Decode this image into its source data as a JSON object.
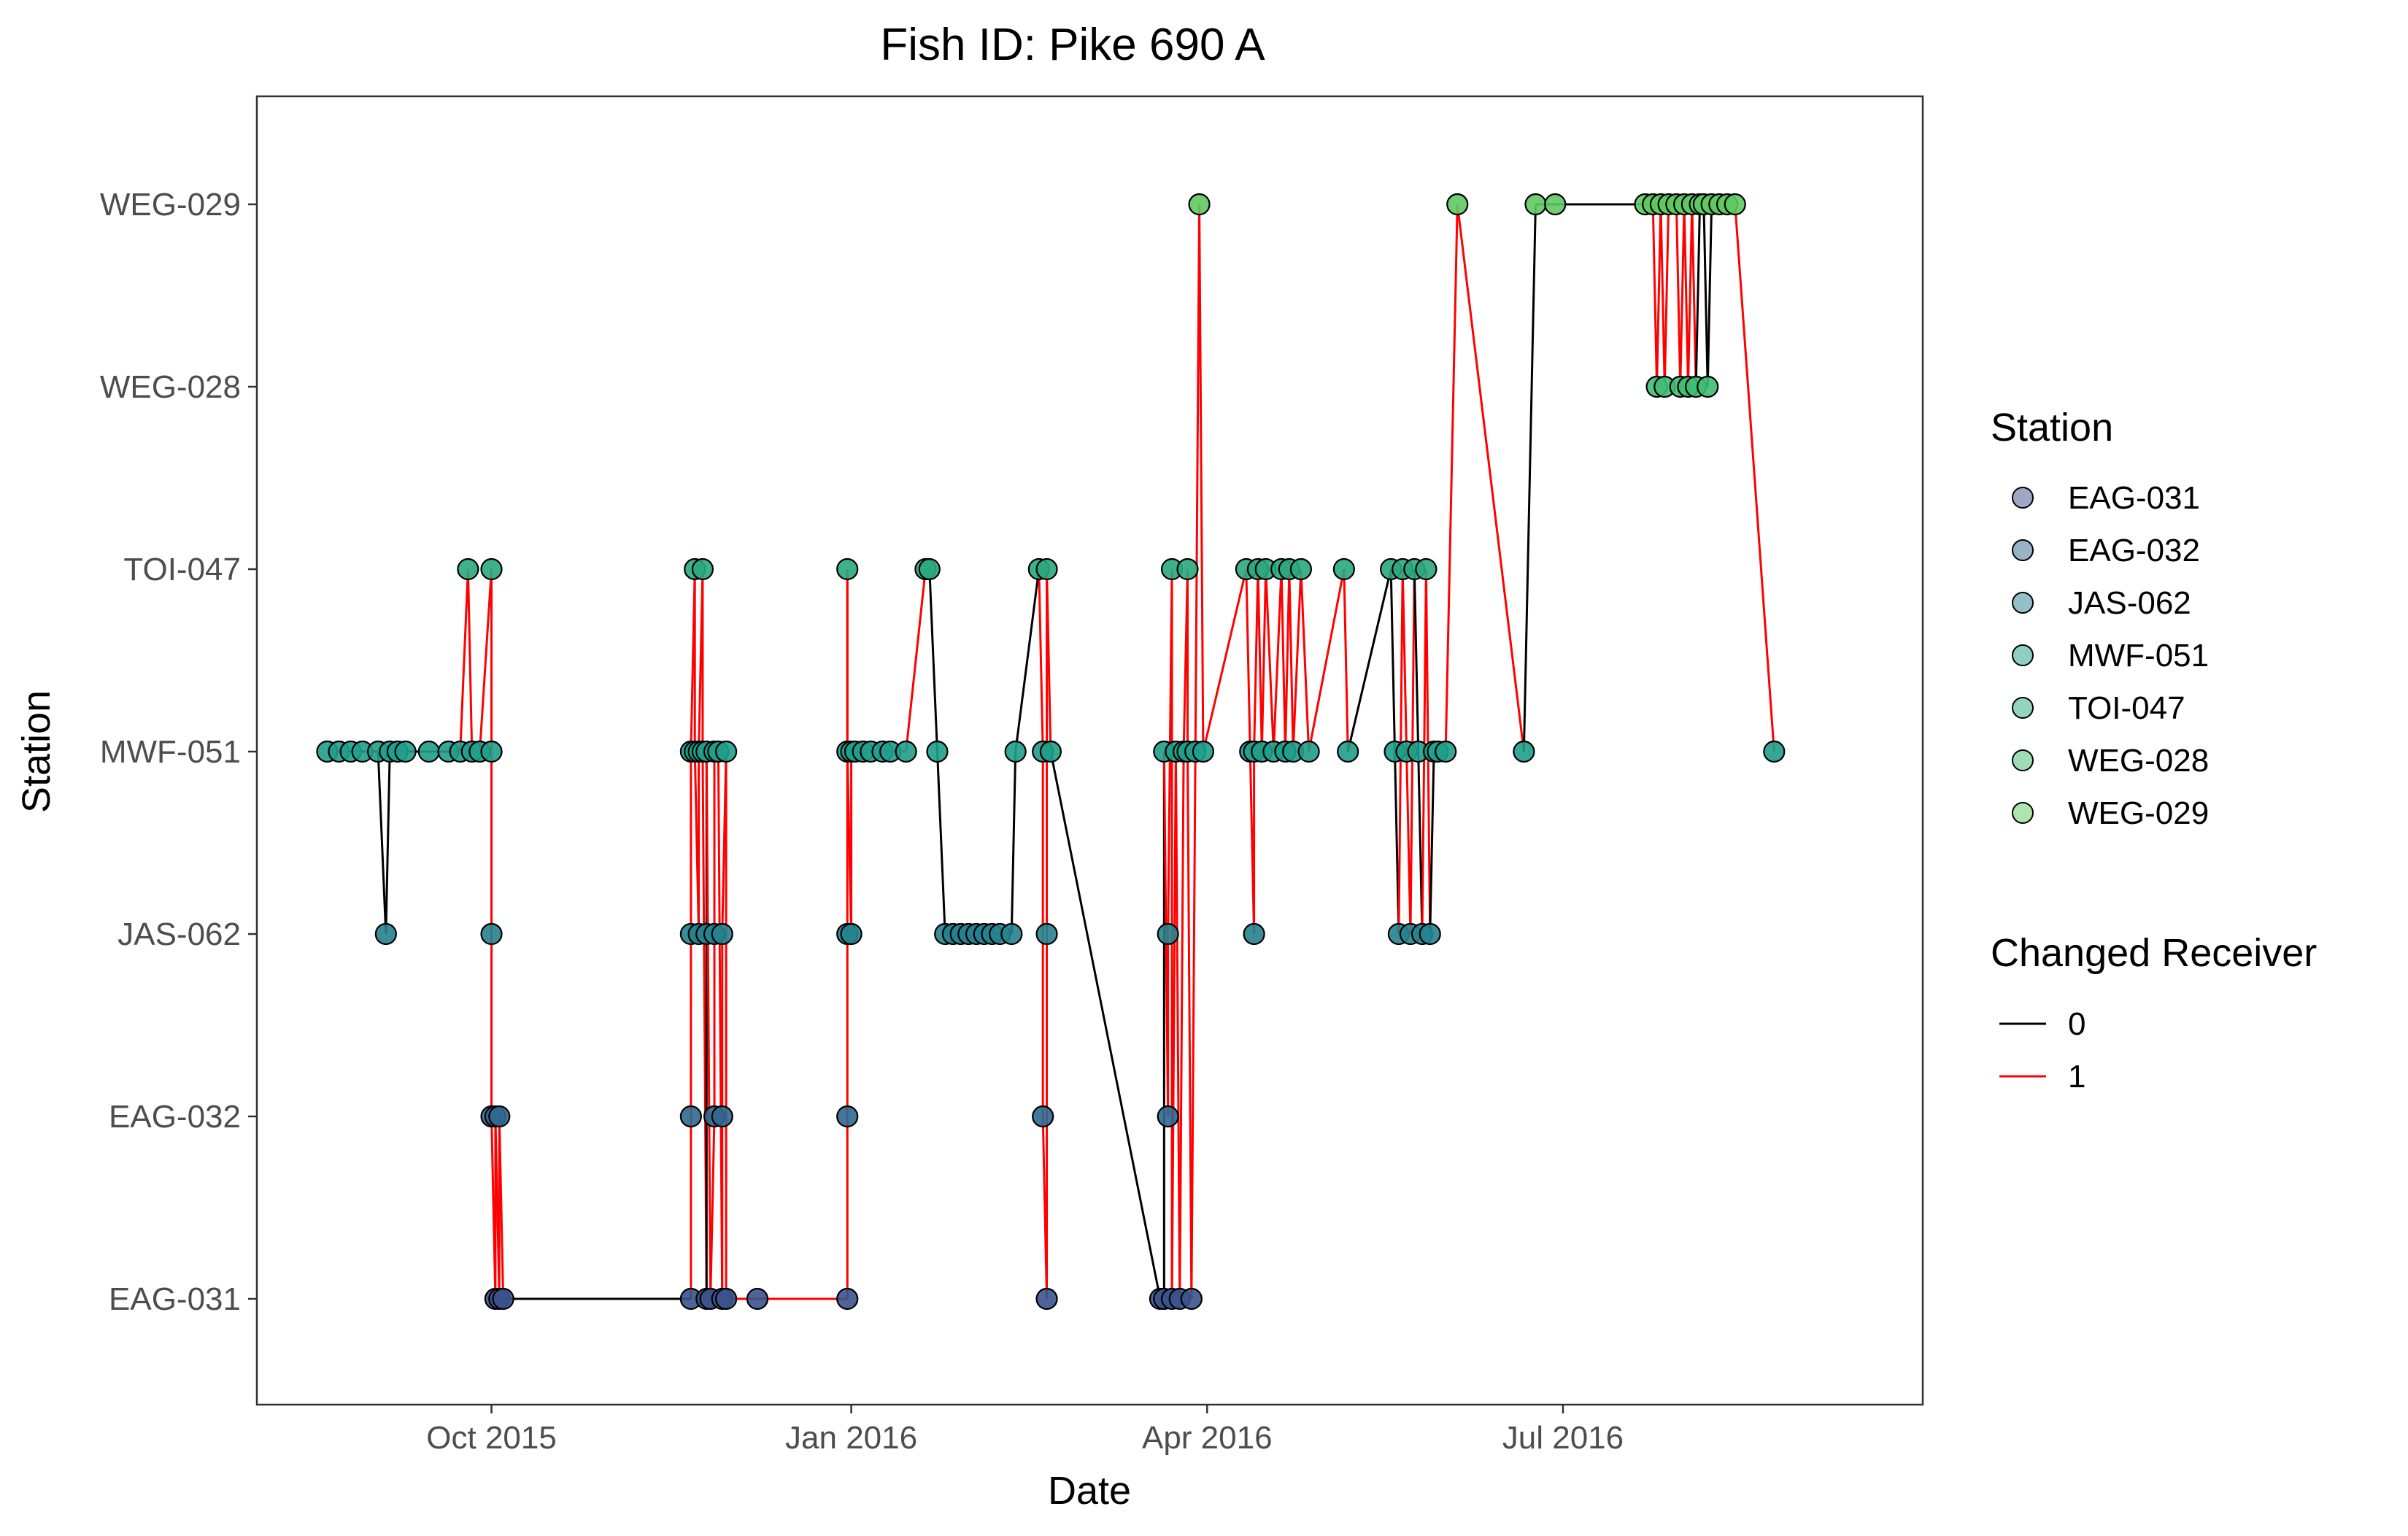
{
  "chart_data": {
    "type": "line",
    "title": "Fish ID: Pike 690 A",
    "xlabel": "Date",
    "ylabel": "Station",
    "x_type": "date",
    "xlim": [
      "2015-08-02",
      "2016-10-01"
    ],
    "x_ticks": [
      {
        "date": "2015-10-01",
        "label": "Oct 2015"
      },
      {
        "date": "2016-01-01",
        "label": "Jan 2016"
      },
      {
        "date": "2016-04-01",
        "label": "Apr 2016"
      },
      {
        "date": "2016-07-01",
        "label": "Jul 2016"
      }
    ],
    "y_categories": [
      "EAG-031",
      "EAG-032",
      "JAS-062",
      "MWF-051",
      "TOI-047",
      "WEG-028",
      "WEG-029"
    ],
    "grid": false,
    "legend": {
      "position": "right",
      "station_title": "Station",
      "stations": [
        {
          "name": "EAG-031",
          "color": "#3b528b"
        },
        {
          "name": "EAG-032",
          "color": "#31688e"
        },
        {
          "name": "JAS-062",
          "color": "#26828e"
        },
        {
          "name": "MWF-051",
          "color": "#1f9e89"
        },
        {
          "name": "TOI-047",
          "color": "#2aa87d"
        },
        {
          "name": "WEG-028",
          "color": "#3fbc73"
        },
        {
          "name": "WEG-029",
          "color": "#5ec962"
        }
      ],
      "changed_title": "Changed Receiver",
      "changed": [
        {
          "name": "0",
          "color": "#000000"
        },
        {
          "name": "1",
          "color": "#ff0000"
        }
      ]
    },
    "points": [
      {
        "date": "2015-08-20",
        "station": "MWF-051",
        "changed": 0
      },
      {
        "date": "2015-08-23",
        "station": "MWF-051",
        "changed": 0
      },
      {
        "date": "2015-08-26",
        "station": "MWF-051",
        "changed": 0
      },
      {
        "date": "2015-08-29",
        "station": "MWF-051",
        "changed": 0
      },
      {
        "date": "2015-09-02",
        "station": "MWF-051",
        "changed": 0
      },
      {
        "date": "2015-09-04",
        "station": "JAS-062",
        "changed": 0
      },
      {
        "date": "2015-09-05",
        "station": "MWF-051",
        "changed": 0
      },
      {
        "date": "2015-09-07",
        "station": "MWF-051",
        "changed": 0
      },
      {
        "date": "2015-09-09",
        "station": "MWF-051",
        "changed": 0
      },
      {
        "date": "2015-09-15",
        "station": "MWF-051",
        "changed": 0
      },
      {
        "date": "2015-09-20",
        "station": "MWF-051",
        "changed": 0
      },
      {
        "date": "2015-09-23",
        "station": "MWF-051",
        "changed": 0
      },
      {
        "date": "2015-09-25",
        "station": "TOI-047",
        "changed": 1
      },
      {
        "date": "2015-09-26",
        "station": "MWF-051",
        "changed": 1
      },
      {
        "date": "2015-09-28",
        "station": "MWF-051",
        "changed": 0
      },
      {
        "date": "2015-10-01",
        "station": "TOI-047",
        "changed": 1
      },
      {
        "date": "2015-10-01",
        "station": "MWF-051",
        "changed": 1
      },
      {
        "date": "2015-10-01",
        "station": "JAS-062",
        "changed": 1
      },
      {
        "date": "2015-10-01",
        "station": "EAG-032",
        "changed": 1
      },
      {
        "date": "2015-10-02",
        "station": "EAG-031",
        "changed": 1
      },
      {
        "date": "2015-10-02",
        "station": "EAG-032",
        "changed": 1
      },
      {
        "date": "2015-10-03",
        "station": "EAG-031",
        "changed": 1
      },
      {
        "date": "2015-10-03",
        "station": "EAG-032",
        "changed": 1
      },
      {
        "date": "2015-10-04",
        "station": "EAG-031",
        "changed": 1
      },
      {
        "date": "2015-11-21",
        "station": "EAG-031",
        "changed": 0
      },
      {
        "date": "2015-11-21",
        "station": "EAG-032",
        "changed": 1
      },
      {
        "date": "2015-11-21",
        "station": "JAS-062",
        "changed": 1
      },
      {
        "date": "2015-11-21",
        "station": "MWF-051",
        "changed": 1
      },
      {
        "date": "2015-11-22",
        "station": "TOI-047",
        "changed": 1
      },
      {
        "date": "2015-11-22",
        "station": "MWF-051",
        "changed": 1
      },
      {
        "date": "2015-11-23",
        "station": "JAS-062",
        "changed": 1
      },
      {
        "date": "2015-11-23",
        "station": "MWF-051",
        "changed": 1
      },
      {
        "date": "2015-11-24",
        "station": "TOI-047",
        "changed": 1
      },
      {
        "date": "2015-11-24",
        "station": "MWF-051",
        "changed": 1
      },
      {
        "date": "2015-11-25",
        "station": "EAG-031",
        "changed": 1
      },
      {
        "date": "2015-11-25",
        "station": "JAS-062",
        "changed": 0
      },
      {
        "date": "2015-11-25",
        "station": "MWF-051",
        "changed": 0
      },
      {
        "date": "2015-11-26",
        "station": "EAG-031",
        "changed": 1
      },
      {
        "date": "2015-11-27",
        "station": "EAG-032",
        "changed": 1
      },
      {
        "date": "2015-11-27",
        "station": "JAS-062",
        "changed": 1
      },
      {
        "date": "2015-11-27",
        "station": "MWF-051",
        "changed": 1
      },
      {
        "date": "2015-11-28",
        "station": "MWF-051",
        "changed": 1
      },
      {
        "date": "2015-11-29",
        "station": "EAG-031",
        "changed": 1
      },
      {
        "date": "2015-11-29",
        "station": "EAG-032",
        "changed": 1
      },
      {
        "date": "2015-11-29",
        "station": "JAS-062",
        "changed": 1
      },
      {
        "date": "2015-11-30",
        "station": "MWF-051",
        "changed": 1
      },
      {
        "date": "2015-11-30",
        "station": "EAG-031",
        "changed": 1
      },
      {
        "date": "2015-12-08",
        "station": "EAG-031",
        "changed": 1
      },
      {
        "date": "2015-12-31",
        "station": "EAG-031",
        "changed": 1
      },
      {
        "date": "2015-12-31",
        "station": "EAG-032",
        "changed": 1
      },
      {
        "date": "2015-12-31",
        "station": "JAS-062",
        "changed": 1
      },
      {
        "date": "2015-12-31",
        "station": "TOI-047",
        "changed": 1
      },
      {
        "date": "2015-12-31",
        "station": "MWF-051",
        "changed": 1
      },
      {
        "date": "2016-01-01",
        "station": "JAS-062",
        "changed": 1
      },
      {
        "date": "2016-01-01",
        "station": "MWF-051",
        "changed": 1
      },
      {
        "date": "2016-01-02",
        "station": "MWF-051",
        "changed": 1
      },
      {
        "date": "2016-01-04",
        "station": "MWF-051",
        "changed": 1
      },
      {
        "date": "2016-01-06",
        "station": "MWF-051",
        "changed": 1
      },
      {
        "date": "2016-01-09",
        "station": "MWF-051",
        "changed": 1
      },
      {
        "date": "2016-01-11",
        "station": "MWF-051",
        "changed": 1
      },
      {
        "date": "2016-01-15",
        "station": "MWF-051",
        "changed": 1
      },
      {
        "date": "2016-01-20",
        "station": "TOI-047",
        "changed": 1
      },
      {
        "date": "2016-01-21",
        "station": "TOI-047",
        "changed": 1
      },
      {
        "date": "2016-01-23",
        "station": "MWF-051",
        "changed": 0
      },
      {
        "date": "2016-01-25",
        "station": "JAS-062",
        "changed": 0
      },
      {
        "date": "2016-01-27",
        "station": "JAS-062",
        "changed": 0
      },
      {
        "date": "2016-01-29",
        "station": "JAS-062",
        "changed": 0
      },
      {
        "date": "2016-01-31",
        "station": "JAS-062",
        "changed": 0
      },
      {
        "date": "2016-02-02",
        "station": "JAS-062",
        "changed": 0
      },
      {
        "date": "2016-02-04",
        "station": "JAS-062",
        "changed": 0
      },
      {
        "date": "2016-02-06",
        "station": "JAS-062",
        "changed": 0
      },
      {
        "date": "2016-02-08",
        "station": "JAS-062",
        "changed": 0
      },
      {
        "date": "2016-02-11",
        "station": "JAS-062",
        "changed": 1
      },
      {
        "date": "2016-02-12",
        "station": "MWF-051",
        "changed": 0
      },
      {
        "date": "2016-02-18",
        "station": "TOI-047",
        "changed": 0
      },
      {
        "date": "2016-02-19",
        "station": "MWF-051",
        "changed": 1
      },
      {
        "date": "2016-02-19",
        "station": "EAG-032",
        "changed": 1
      },
      {
        "date": "2016-02-20",
        "station": "EAG-031",
        "changed": 1
      },
      {
        "date": "2016-02-20",
        "station": "JAS-062",
        "changed": 1
      },
      {
        "date": "2016-02-20",
        "station": "TOI-047",
        "changed": 1
      },
      {
        "date": "2016-02-21",
        "station": "MWF-051",
        "changed": 1
      },
      {
        "date": "2016-03-20",
        "station": "EAG-031",
        "changed": 0
      },
      {
        "date": "2016-03-21",
        "station": "EAG-031",
        "changed": 0
      },
      {
        "date": "2016-03-21",
        "station": "MWF-051",
        "changed": 0
      },
      {
        "date": "2016-03-22",
        "station": "EAG-032",
        "changed": 1
      },
      {
        "date": "2016-03-22",
        "station": "JAS-062",
        "changed": 1
      },
      {
        "date": "2016-03-23",
        "station": "TOI-047",
        "changed": 1
      },
      {
        "date": "2016-03-23",
        "station": "EAG-031",
        "changed": 1
      },
      {
        "date": "2016-03-24",
        "station": "MWF-051",
        "changed": 1
      },
      {
        "date": "2016-03-25",
        "station": "EAG-031",
        "changed": 1
      },
      {
        "date": "2016-03-26",
        "station": "MWF-051",
        "changed": 1
      },
      {
        "date": "2016-03-27",
        "station": "TOI-047",
        "changed": 1
      },
      {
        "date": "2016-03-27",
        "station": "MWF-051",
        "changed": 1
      },
      {
        "date": "2016-03-28",
        "station": "EAG-031",
        "changed": 1
      },
      {
        "date": "2016-03-29",
        "station": "MWF-051",
        "changed": 1
      },
      {
        "date": "2016-03-30",
        "station": "WEG-029",
        "changed": 1
      },
      {
        "date": "2016-03-31",
        "station": "MWF-051",
        "changed": 1
      },
      {
        "date": "2016-04-11",
        "station": "TOI-047",
        "changed": 1
      },
      {
        "date": "2016-04-12",
        "station": "MWF-051",
        "changed": 1
      },
      {
        "date": "2016-04-13",
        "station": "JAS-062",
        "changed": 1
      },
      {
        "date": "2016-04-13",
        "station": "MWF-051",
        "changed": 1
      },
      {
        "date": "2016-04-14",
        "station": "TOI-047",
        "changed": 1
      },
      {
        "date": "2016-04-15",
        "station": "MWF-051",
        "changed": 1
      },
      {
        "date": "2016-04-16",
        "station": "TOI-047",
        "changed": 1
      },
      {
        "date": "2016-04-18",
        "station": "MWF-051",
        "changed": 1
      },
      {
        "date": "2016-04-20",
        "station": "TOI-047",
        "changed": 1
      },
      {
        "date": "2016-04-21",
        "station": "MWF-051",
        "changed": 1
      },
      {
        "date": "2016-04-22",
        "station": "TOI-047",
        "changed": 1
      },
      {
        "date": "2016-04-23",
        "station": "MWF-051",
        "changed": 1
      },
      {
        "date": "2016-04-25",
        "station": "TOI-047",
        "changed": 1
      },
      {
        "date": "2016-04-27",
        "station": "MWF-051",
        "changed": 1
      },
      {
        "date": "2016-05-06",
        "station": "TOI-047",
        "changed": 1
      },
      {
        "date": "2016-05-07",
        "station": "MWF-051",
        "changed": 1
      },
      {
        "date": "2016-05-18",
        "station": "TOI-047",
        "changed": 0
      },
      {
        "date": "2016-05-19",
        "station": "MWF-051",
        "changed": 0
      },
      {
        "date": "2016-05-20",
        "station": "JAS-062",
        "changed": 0
      },
      {
        "date": "2016-05-21",
        "station": "TOI-047",
        "changed": 1
      },
      {
        "date": "2016-05-22",
        "station": "MWF-051",
        "changed": 1
      },
      {
        "date": "2016-05-23",
        "station": "JAS-062",
        "changed": 1
      },
      {
        "date": "2016-05-24",
        "station": "TOI-047",
        "changed": 1
      },
      {
        "date": "2016-05-25",
        "station": "MWF-051",
        "changed": 0
      },
      {
        "date": "2016-05-26",
        "station": "JAS-062",
        "changed": 0
      },
      {
        "date": "2016-05-27",
        "station": "TOI-047",
        "changed": 1
      },
      {
        "date": "2016-05-28",
        "station": "JAS-062",
        "changed": 1
      },
      {
        "date": "2016-05-29",
        "station": "MWF-051",
        "changed": 0
      },
      {
        "date": "2016-05-30",
        "station": "MWF-051",
        "changed": 0
      },
      {
        "date": "2016-06-01",
        "station": "MWF-051",
        "changed": 0
      },
      {
        "date": "2016-06-04",
        "station": "WEG-029",
        "changed": 1
      },
      {
        "date": "2016-06-21",
        "station": "MWF-051",
        "changed": 1
      },
      {
        "date": "2016-06-24",
        "station": "WEG-029",
        "changed": 0
      },
      {
        "date": "2016-06-29",
        "station": "WEG-029",
        "changed": 0
      },
      {
        "date": "2016-07-22",
        "station": "WEG-029",
        "changed": 0
      },
      {
        "date": "2016-07-24",
        "station": "WEG-029",
        "changed": 1
      },
      {
        "date": "2016-07-25",
        "station": "WEG-028",
        "changed": 1
      },
      {
        "date": "2016-07-26",
        "station": "WEG-029",
        "changed": 1
      },
      {
        "date": "2016-07-27",
        "station": "WEG-028",
        "changed": 1
      },
      {
        "date": "2016-07-28",
        "station": "WEG-029",
        "changed": 1
      },
      {
        "date": "2016-07-30",
        "station": "WEG-029",
        "changed": 1
      },
      {
        "date": "2016-07-31",
        "station": "WEG-028",
        "changed": 1
      },
      {
        "date": "2016-08-01",
        "station": "WEG-029",
        "changed": 1
      },
      {
        "date": "2016-08-02",
        "station": "WEG-028",
        "changed": 1
      },
      {
        "date": "2016-08-03",
        "station": "WEG-029",
        "changed": 1
      },
      {
        "date": "2016-08-04",
        "station": "WEG-028",
        "changed": 1
      },
      {
        "date": "2016-08-05",
        "station": "WEG-029",
        "changed": 0
      },
      {
        "date": "2016-08-06",
        "station": "WEG-029",
        "changed": 0
      },
      {
        "date": "2016-08-07",
        "station": "WEG-028",
        "changed": 0
      },
      {
        "date": "2016-08-08",
        "station": "WEG-029",
        "changed": 0
      },
      {
        "date": "2016-08-10",
        "station": "WEG-029",
        "changed": 0
      },
      {
        "date": "2016-08-12",
        "station": "WEG-029",
        "changed": 0
      },
      {
        "date": "2016-08-14",
        "station": "WEG-029",
        "changed": 0
      },
      {
        "date": "2016-08-24",
        "station": "MWF-051",
        "changed": 1
      }
    ]
  }
}
